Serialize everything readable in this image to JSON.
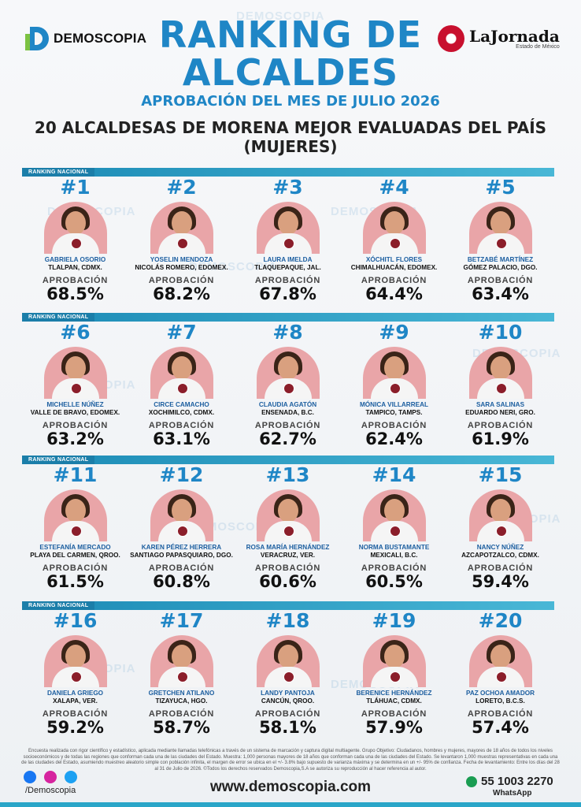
{
  "header": {
    "brand_left": "DEMOSCOPIA",
    "title_line1": "RANKING DE",
    "title_line2": "ALCALDES",
    "subtitle": "APROBACIÓN DEL MES DE JULIO 2026",
    "heading_line1": "20 ALCALDESAS DE MORENA MEJOR EVALUADAS DEL PAÍS",
    "heading_line2": "(MUJERES)",
    "brand_right": "LaJornada",
    "brand_right_sub": "Estado de México",
    "watermark": "DEMOSCOPIA"
  },
  "section_label": "RANKING NACIONAL",
  "approval_label": "APROBACIÓN",
  "rows": [
    [
      {
        "rank": "#1",
        "name": "GABRIELA OSORIO",
        "location": "TLALPAN, CDMX.",
        "approval": "68.5%"
      },
      {
        "rank": "#2",
        "name": "YOSELIN MENDOZA",
        "location": "NICOLÁS ROMERO, EDOMEX.",
        "approval": "68.2%"
      },
      {
        "rank": "#3",
        "name": "LAURA IMELDA",
        "location": "TLAQUEPAQUE, JAL.",
        "approval": "67.8%"
      },
      {
        "rank": "#4",
        "name": "XÓCHITL FLORES",
        "location": "CHIMALHUACÁN, EDOMEX.",
        "approval": "64.4%"
      },
      {
        "rank": "#5",
        "name": "BETZABÉ MARTÍNEZ",
        "location": "GÓMEZ PALACIO, DGO.",
        "approval": "63.4%"
      }
    ],
    [
      {
        "rank": "#6",
        "name": "MICHELLE NÚÑEZ",
        "location": "VALLE DE BRAVO, EDOMEX.",
        "approval": "63.2%"
      },
      {
        "rank": "#7",
        "name": "CIRCE CAMACHO",
        "location": "XOCHIMILCO, CDMX.",
        "approval": "63.1%"
      },
      {
        "rank": "#8",
        "name": "CLAUDIA AGATÓN",
        "location": "ENSENADA, B.C.",
        "approval": "62.7%"
      },
      {
        "rank": "#9",
        "name": "MÓNICA VILLARREAL",
        "location": "TAMPICO, TAMPS.",
        "approval": "62.4%"
      },
      {
        "rank": "#10",
        "name": "SARA SALINAS",
        "location": "EDUARDO NERI, GRO.",
        "approval": "61.9%"
      }
    ],
    [
      {
        "rank": "#11",
        "name": "ESTEFANÍA MERCADO",
        "location": "PLAYA DEL CARMEN, QROO.",
        "approval": "61.5%"
      },
      {
        "rank": "#12",
        "name": "KAREN PÉREZ HERRERA",
        "location": "SANTIAGO PAPASQUIARO, DGO.",
        "approval": "60.8%"
      },
      {
        "rank": "#13",
        "name": "ROSA MARÍA HERNÁNDEZ",
        "location": "VERACRUZ, VER.",
        "approval": "60.6%"
      },
      {
        "rank": "#14",
        "name": "NORMA BUSTAMANTE",
        "location": "MEXICALI, B.C.",
        "approval": "60.5%"
      },
      {
        "rank": "#15",
        "name": "NANCY NÚÑEZ",
        "location": "AZCAPOTZALCO, CDMX.",
        "approval": "59.4%"
      }
    ],
    [
      {
        "rank": "#16",
        "name": "DANIELA GRIEGO",
        "location": "XALAPA, VER.",
        "approval": "59.2%"
      },
      {
        "rank": "#17",
        "name": "GRETCHEN ATILANO",
        "location": "TIZAYUCA, HGO.",
        "approval": "58.7%"
      },
      {
        "rank": "#18",
        "name": "LANDY PANTOJA",
        "location": "CANCÚN, QROO.",
        "approval": "58.1%"
      },
      {
        "rank": "#19",
        "name": "BERENICE HERNÁNDEZ",
        "location": "TLÁHUAC, CDMX.",
        "approval": "57.9%"
      },
      {
        "rank": "#20",
        "name": "PAZ OCHOA AMADOR",
        "location": "LORETO, B.C.S.",
        "approval": "57.4%"
      }
    ]
  ],
  "footer": {
    "note": "Encuesta realizada con rigor científico y estadístico, aplicada mediante llamadas telefónicas a través de un sistema de marcación y captura digital multiagente. Grupo Objetivo: Ciudadanos, hombres y mujeres, mayores de 18 años de todos los niveles socioeconómicos y de todas las regiones que conforman cada una de las ciudades del Estado. Muestra: 1,000 personas mayores de 18 años que conforman cada una de las ciudades del Estado. Se levantaron 1,000 muestras representativas en cada una de las ciudades del Estado, asumiendo muestreo aleatorio simple con población infinita, el margen de error se ubica en el +/- 3.8% bajo supuesto de varianza máxima y se determina en un +/- 95% de confianza. Fecha de levantamiento: Entre los días del 28 al 31 de Julio de 2026. ©Todos los derechos reservados Demoscopia,S.A se autoriza su reproducción al hacer referencia al autor.",
    "social_handle": "/Demoscopia",
    "website": "www.demoscopia.com",
    "phone": "55 1003 2270",
    "whatsapp_label": "WhatsApp",
    "colors": {
      "facebook": "#1877f2",
      "instagram": "#d6249f",
      "twitter": "#1da1f2"
    }
  }
}
